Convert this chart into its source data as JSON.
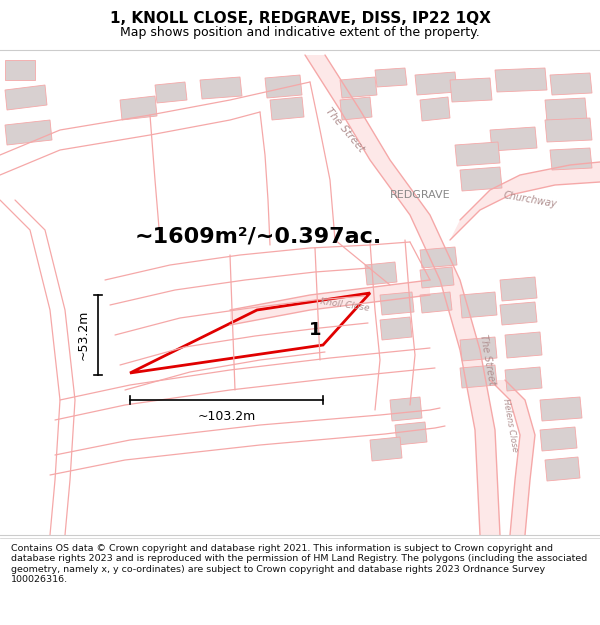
{
  "title": "1, KNOLL CLOSE, REDGRAVE, DISS, IP22 1QX",
  "subtitle": "Map shows position and indicative extent of the property.",
  "footer": "Contains OS data © Crown copyright and database right 2021. This information is subject to Crown copyright and database rights 2023 and is reproduced with the permission of HM Land Registry. The polygons (including the associated geometry, namely x, y co-ordinates) are subject to Crown copyright and database rights 2023 Ordnance Survey 100026316.",
  "area_label": "~1609m²/~0.397ac.",
  "width_label": "~103.2m",
  "height_label": "~53.2m",
  "plot_number": "1",
  "background_color": "#ffffff",
  "road_color": "#f5a8a8",
  "building_color": "#d8d0d0",
  "road_fill_color": "#fde8e8",
  "highlight_color": "#e00000",
  "title_color": "#000000",
  "text_gray": "#888888",
  "road_label_color": "#b09090",
  "title_fontsize": 11,
  "subtitle_fontsize": 9,
  "area_fontsize": 16,
  "footer_fontsize": 6.8
}
